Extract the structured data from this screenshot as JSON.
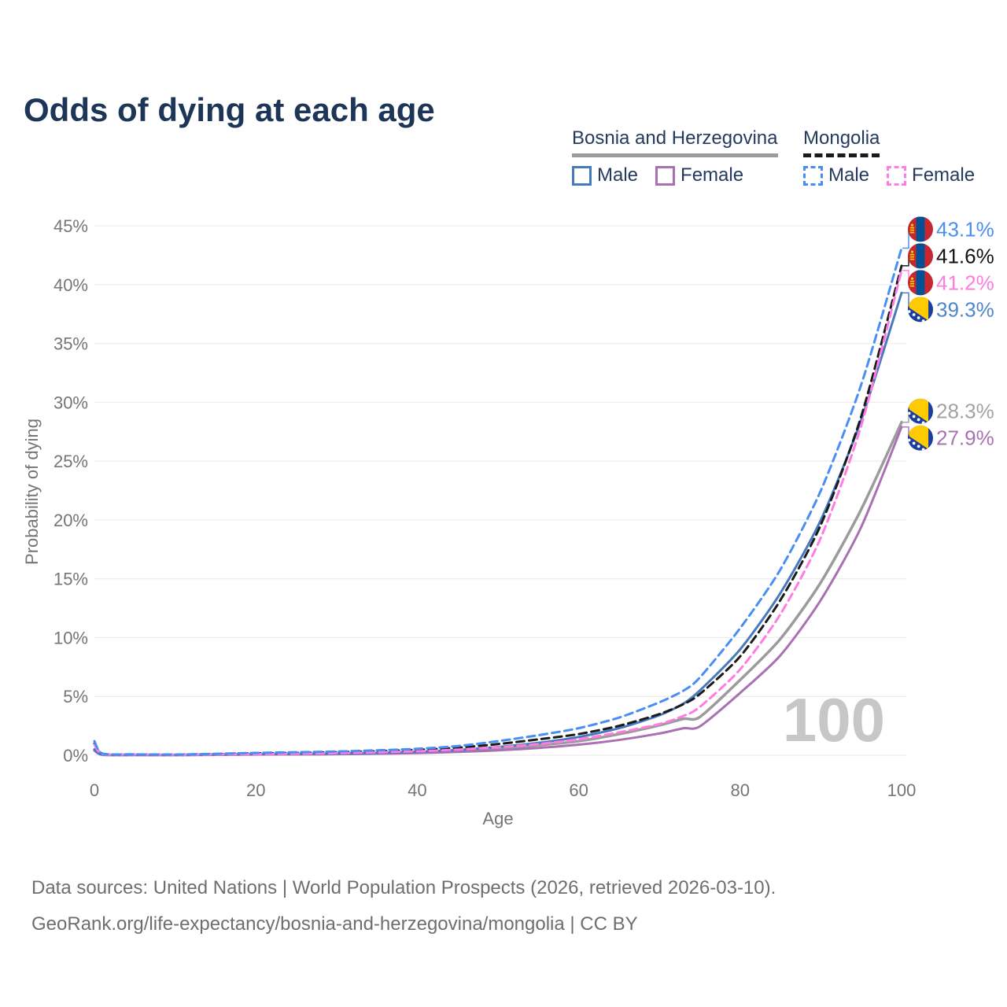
{
  "title": "Odds of dying at each age",
  "legend": {
    "groups": [
      {
        "name": "Bosnia and Herzegovina",
        "line_style": "solid",
        "underline_color": "#9b9b9b",
        "items": [
          {
            "label": "Male",
            "color": "#4679bd",
            "dashed": false
          },
          {
            "label": "Female",
            "color": "#aa70b4",
            "dashed": false
          }
        ]
      },
      {
        "name": "Mongolia",
        "line_style": "dashed",
        "underline_color": "#1b1b1b",
        "items": [
          {
            "label": "Male",
            "color": "#4a8ef5",
            "dashed": true
          },
          {
            "label": "Female",
            "color": "#ff7ce2",
            "dashed": true
          }
        ]
      }
    ]
  },
  "watermark": "100",
  "footer": {
    "line1": "Data sources: United Nations | World Population Prospects (2026, retrieved 2026-03-10).",
    "line2": "GeoRank.org/life-expectancy/bosnia-and-herzegovina/mongolia | CC BY"
  },
  "chart_data": {
    "type": "line",
    "title": "Odds of dying at each age",
    "xlabel": "Age",
    "ylabel": "Probability of dying",
    "xlim": [
      0,
      100
    ],
    "ylim": [
      0,
      45
    ],
    "grid": true,
    "legend_position": "top-right",
    "x_ticks": [
      0,
      20,
      40,
      60,
      80,
      100
    ],
    "y_ticks": [
      0,
      5,
      10,
      15,
      20,
      25,
      30,
      35,
      40,
      45
    ],
    "y_tick_labels": [
      "0%",
      "5%",
      "10%",
      "15%",
      "20%",
      "25%",
      "30%",
      "35%",
      "40%",
      "45%"
    ],
    "x": [
      0,
      1,
      5,
      10,
      15,
      20,
      25,
      30,
      35,
      40,
      45,
      50,
      55,
      60,
      65,
      70,
      73,
      75,
      80,
      85,
      90,
      95,
      100
    ],
    "series": [
      {
        "name": "Bosnia and Herzegovina — Both sexes",
        "color": "#9b9b9b",
        "dashed": false,
        "width": 3.5,
        "end_label": "28.3%",
        "end_value": 28.3,
        "label_color": "#a3a3a3",
        "flag": "ba",
        "values": [
          0.45,
          0.05,
          0.03,
          0.02,
          0.05,
          0.08,
          0.1,
          0.12,
          0.17,
          0.25,
          0.37,
          0.55,
          0.85,
          1.2,
          1.8,
          2.55,
          3.1,
          3.25,
          6.4,
          9.9,
          14.7,
          20.9,
          28.3
        ]
      },
      {
        "name": "Bosnia and Herzegovina — Female",
        "color": "#aa70b4",
        "dashed": false,
        "width": 3,
        "end_label": "27.9%",
        "end_value": 27.9,
        "label_color": "#aa70b4",
        "flag": "ba",
        "values": [
          0.4,
          0.04,
          0.02,
          0.02,
          0.04,
          0.06,
          0.07,
          0.09,
          0.13,
          0.18,
          0.28,
          0.42,
          0.62,
          0.9,
          1.3,
          1.85,
          2.3,
          2.45,
          5.3,
          8.5,
          13.2,
          19.4,
          27.9
        ]
      },
      {
        "name": "Bosnia and Herzegovina — Male",
        "color": "#4679bd",
        "dashed": false,
        "width": 3,
        "end_label": "39.3%",
        "end_value": 39.3,
        "label_color": "#4e86ca",
        "flag": "ba",
        "values": [
          0.5,
          0.06,
          0.03,
          0.03,
          0.06,
          0.1,
          0.12,
          0.15,
          0.2,
          0.3,
          0.45,
          0.7,
          1.05,
          1.55,
          2.3,
          3.4,
          4.4,
          5.5,
          9.0,
          13.8,
          20.0,
          28.5,
          39.3
        ]
      },
      {
        "name": "Mongolia — Both sexes",
        "color": "#1b1b1b",
        "dashed": true,
        "width": 3,
        "end_label": "41.6%",
        "end_value": 41.6,
        "label_color": "#121212",
        "flag": "mn",
        "values": [
          1.0,
          0.12,
          0.07,
          0.05,
          0.1,
          0.16,
          0.2,
          0.26,
          0.34,
          0.46,
          0.64,
          0.95,
          1.35,
          1.8,
          2.5,
          3.5,
          4.35,
          5.2,
          8.4,
          13.2,
          19.6,
          28.8,
          41.6
        ]
      },
      {
        "name": "Mongolia — Female",
        "color": "#ff7ce2",
        "dashed": true,
        "width": 3,
        "end_label": "41.2%",
        "end_value": 41.2,
        "label_color": "#ff7ce2",
        "flag": "mn",
        "values": [
          0.9,
          0.1,
          0.06,
          0.04,
          0.07,
          0.1,
          0.13,
          0.18,
          0.25,
          0.34,
          0.48,
          0.68,
          0.95,
          1.35,
          1.95,
          2.65,
          3.35,
          4.1,
          7.3,
          12.0,
          18.5,
          28.0,
          41.2
        ]
      },
      {
        "name": "Mongolia — Male",
        "color": "#4a8ef5",
        "dashed": true,
        "width": 3,
        "end_label": "43.1%",
        "end_value": 43.1,
        "label_color": "#4a8ef5",
        "flag": "mn",
        "values": [
          1.2,
          0.15,
          0.08,
          0.06,
          0.12,
          0.2,
          0.26,
          0.32,
          0.42,
          0.55,
          0.78,
          1.2,
          1.7,
          2.3,
          3.2,
          4.5,
          5.5,
          6.6,
          10.8,
          15.8,
          22.5,
          31.5,
          43.1
        ]
      }
    ]
  },
  "colors": {
    "title_text": "#1d3657",
    "legend_text": "#243a5e",
    "axis_text": "#757575",
    "gridline": "#ececec",
    "watermark": "#c7c7c7",
    "footer_text": "#6e6e6e"
  }
}
